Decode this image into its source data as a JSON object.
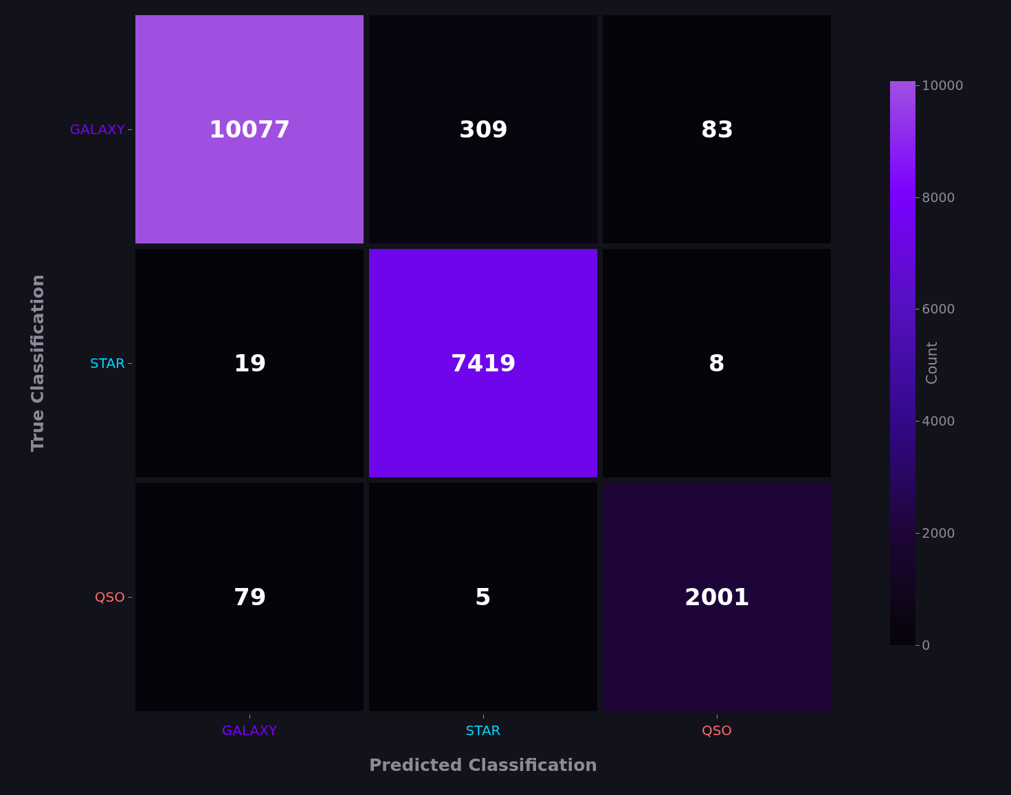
{
  "chart_data": {
    "type": "heatmap",
    "xlabel": "Predicted Classification",
    "ylabel": "True Classification",
    "clabel": "Count",
    "categories": [
      "GALAXY",
      "STAR",
      "QSO"
    ],
    "y_categories": [
      "GALAXY",
      "STAR",
      "QSO"
    ],
    "cells": [
      [
        10077,
        309,
        83
      ],
      [
        19,
        7419,
        8
      ],
      [
        79,
        5,
        2001
      ]
    ],
    "clim": [
      0,
      10077
    ],
    "cticks": [
      0,
      2000,
      4000,
      6000,
      8000,
      10000
    ],
    "data_labels": true
  }
}
